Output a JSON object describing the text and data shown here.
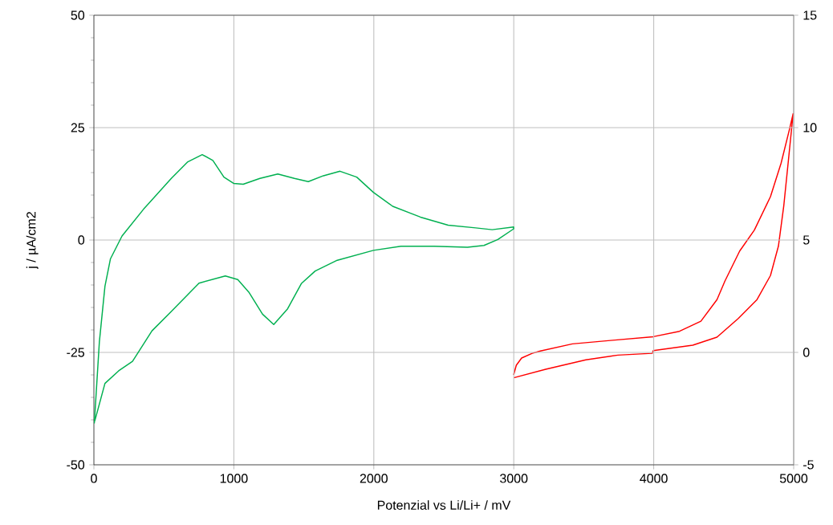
{
  "chart_data": {
    "type": "line",
    "xlabel": "Potenzial vs Li/Li+ / mV",
    "ylabel": "j / µA/cm2",
    "xlim": [
      0,
      5000
    ],
    "xticks": [
      0,
      1000,
      2000,
      3000,
      4000,
      5000
    ],
    "ylim": [
      -50,
      50
    ],
    "yticks": [
      -50,
      -25,
      0,
      25,
      50
    ],
    "y2lim": [
      -5,
      15
    ],
    "y2ticks": [
      -5,
      0,
      5,
      10,
      15
    ],
    "grid": true,
    "marker": "none",
    "line_style": "solid",
    "series": [
      {
        "color": "#00b050",
        "x": [
          3,
          39,
          79,
          118,
          201,
          356,
          553,
          671,
          774,
          850,
          929,
          998,
          1067,
          1186,
          1314,
          1433,
          1532,
          1640,
          1759,
          1878,
          1997,
          2135,
          2333,
          2531,
          2728,
          2846,
          2999,
          3000,
          2886,
          2787,
          2669,
          2431,
          2194,
          1997,
          1739,
          1581,
          1482,
          1384,
          1285,
          1205,
          1107,
          1028,
          939,
          751,
          553,
          415,
          276,
          177,
          79,
          6
        ],
        "values": [
          -40.8,
          -22.7,
          -10.3,
          -4.2,
          0.9,
          6.9,
          13.7,
          17.4,
          19.0,
          17.7,
          14.0,
          12.6,
          12.4,
          13.7,
          14.7,
          13.7,
          13.0,
          14.3,
          15.3,
          14.0,
          10.6,
          7.5,
          5.1,
          3.3,
          2.7,
          2.3,
          2.9,
          2.5,
          0.1,
          -1.2,
          -1.6,
          -1.4,
          -1.4,
          -2.3,
          -4.5,
          -6.9,
          -9.7,
          -15.3,
          -18.8,
          -16.5,
          -11.6,
          -8.8,
          -8.0,
          -9.6,
          -15.9,
          -20.2,
          -27.0,
          -29.1,
          -31.9,
          -40.3
        ]
      },
      {
        "color": "#ff0000",
        "axis": "y2",
        "x": [
          2999,
          3228,
          3515,
          3744,
          3989,
          3997,
          4279,
          4452,
          4604,
          4738,
          4834,
          4891,
          4929,
          4964,
          4996,
          4967,
          4910,
          4834,
          4719,
          4614,
          4509,
          4452,
          4337,
          4184,
          3997,
          3706,
          3419,
          3190,
          3132,
          3056,
          3018,
          2999
        ],
        "values": [
          -1.13,
          -0.75,
          -0.33,
          -0.12,
          -0.04,
          0.08,
          0.32,
          0.68,
          1.51,
          2.35,
          3.42,
          4.73,
          6.51,
          8.65,
          10.62,
          9.85,
          8.42,
          6.93,
          5.44,
          4.51,
          3.18,
          2.35,
          1.39,
          0.94,
          0.7,
          0.54,
          0.38,
          0.06,
          -0.04,
          -0.25,
          -0.57,
          -1.0
        ]
      }
    ]
  }
}
